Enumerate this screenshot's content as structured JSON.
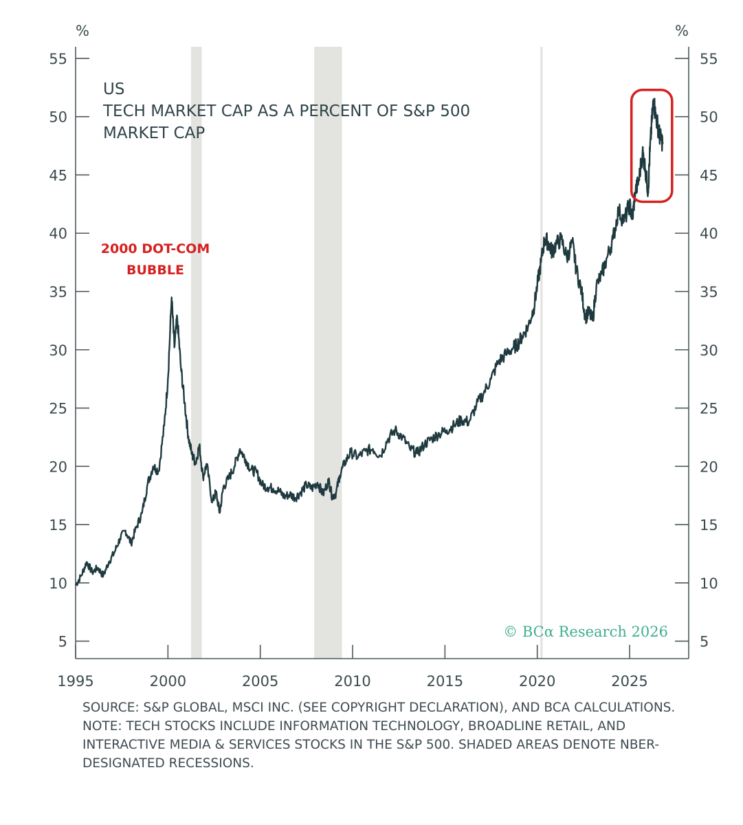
{
  "chart_data": {
    "type": "line",
    "title_lines": [
      "US",
      "TECH MARKET CAP AS A PERCENT OF S&P 500",
      "MARKET CAP"
    ],
    "y_unit_left": "%",
    "y_unit_right": "%",
    "ylim": [
      3.5,
      56
    ],
    "xlim": [
      1995.0,
      2028.2
    ],
    "y_ticks": [
      5,
      10,
      15,
      20,
      25,
      30,
      35,
      40,
      45,
      50,
      55
    ],
    "x_ticks": [
      1995,
      2000,
      2005,
      2010,
      2015,
      2020,
      2025
    ],
    "recessions": [
      [
        2001.25,
        2001.83
      ],
      [
        2007.92,
        2009.42
      ],
      [
        2020.17,
        2020.29
      ]
    ],
    "annotation": {
      "lines": [
        "2000 DOT-COM",
        "BUBBLE"
      ],
      "color": "#d62020"
    },
    "highlight_box": {
      "x": [
        2025.1,
        2027.3
      ],
      "y": [
        42.7,
        52.3
      ],
      "color": "#d62020"
    },
    "line_color": "#1f3a3f",
    "series": [
      {
        "x": [
          1995.0,
          1995.3,
          1995.6,
          1995.9,
          1996.2,
          1996.5,
          1996.8,
          1997.1,
          1997.4,
          1997.7,
          1998.0,
          1998.3,
          1998.6,
          1998.9,
          1999.2,
          1999.5,
          1999.8,
          2000.0,
          2000.2,
          2000.35,
          2000.5,
          2000.7,
          2000.9,
          2001.1,
          2001.3,
          2001.5,
          2001.7,
          2001.9,
          2002.1,
          2002.4,
          2002.6,
          2002.8,
          2003.0,
          2003.3,
          2003.6,
          2003.9,
          2004.2,
          2004.5,
          2004.8,
          2005.1,
          2005.4,
          2005.7,
          2006.0,
          2006.3,
          2006.6,
          2006.9,
          2007.2,
          2007.5,
          2007.8,
          2008.1,
          2008.4,
          2008.7,
          2008.9,
          2009.1,
          2009.3,
          2009.6,
          2009.9,
          2010.3,
          2010.7,
          2011.1,
          2011.5,
          2011.9,
          2012.3,
          2012.7,
          2013.1,
          2013.5,
          2013.9,
          2014.3,
          2014.7,
          2015.1,
          2015.5,
          2015.9,
          2016.3,
          2016.7,
          2017.1,
          2017.5,
          2017.9,
          2018.3,
          2018.7,
          2018.9,
          2019.2,
          2019.5,
          2019.8,
          2020.0,
          2020.2,
          2020.4,
          2020.6,
          2020.8,
          2021.0,
          2021.3,
          2021.6,
          2021.9,
          2022.1,
          2022.4,
          2022.6,
          2022.8,
          2023.0,
          2023.2,
          2023.5,
          2023.8,
          2024.1,
          2024.4,
          2024.7,
          2025.0,
          2025.15,
          2025.3,
          2025.5,
          2025.7,
          2025.85,
          2026.0,
          2026.1,
          2026.2,
          2026.3,
          2026.4,
          2026.55,
          2026.65,
          2026.8
        ],
        "values": [
          9.8,
          10.6,
          11.8,
          10.9,
          11.3,
          10.6,
          11.8,
          12.6,
          13.8,
          14.5,
          13.4,
          14.8,
          16.0,
          18.5,
          20.0,
          19.6,
          23.5,
          27.5,
          34.5,
          30.2,
          32.8,
          28.5,
          25.5,
          22.6,
          21.0,
          20.3,
          21.8,
          19.1,
          20.2,
          16.9,
          17.8,
          16.0,
          18.2,
          19.0,
          20.0,
          21.5,
          20.6,
          19.7,
          19.5,
          18.4,
          18.2,
          18.1,
          17.9,
          17.4,
          17.6,
          17.3,
          17.8,
          18.4,
          18.1,
          18.6,
          17.6,
          18.8,
          17.4,
          17.7,
          19.2,
          20.4,
          21.2,
          20.8,
          21.3,
          21.5,
          20.9,
          22.3,
          23.1,
          22.5,
          21.5,
          21.1,
          21.9,
          22.4,
          22.8,
          23.1,
          23.5,
          24.0,
          23.8,
          25.2,
          26.3,
          27.5,
          29.0,
          29.6,
          30.2,
          30.4,
          31.2,
          32.0,
          33.5,
          35.5,
          37.5,
          39.5,
          39.2,
          38.4,
          39.0,
          39.5,
          37.9,
          39.2,
          37.0,
          35.0,
          32.8,
          33.2,
          32.5,
          35.5,
          36.5,
          38.0,
          39.5,
          42.0,
          41.0,
          42.5,
          41.2,
          43.5,
          44.5,
          47.0,
          45.5,
          43.6,
          47.0,
          49.5,
          51.5,
          50.2,
          49.0,
          48.2,
          47.8
        ]
      }
    ]
  },
  "watermark": "© BCα Research 2026",
  "notes": {
    "source": "SOURCE: S&P GLOBAL, MSCI INC. (SEE COPYRIGHT DECLARATION), AND BCA CALCULATIONS.",
    "note": "NOTE: TECH STOCKS INCLUDE INFORMATION TECHNOLOGY, BROADLINE RETAIL, AND INTERACTIVE MEDIA & SERVICES STOCKS IN THE S&P 500. SHADED AREAS DENOTE NBER-DESIGNATED RECESSIONS."
  }
}
